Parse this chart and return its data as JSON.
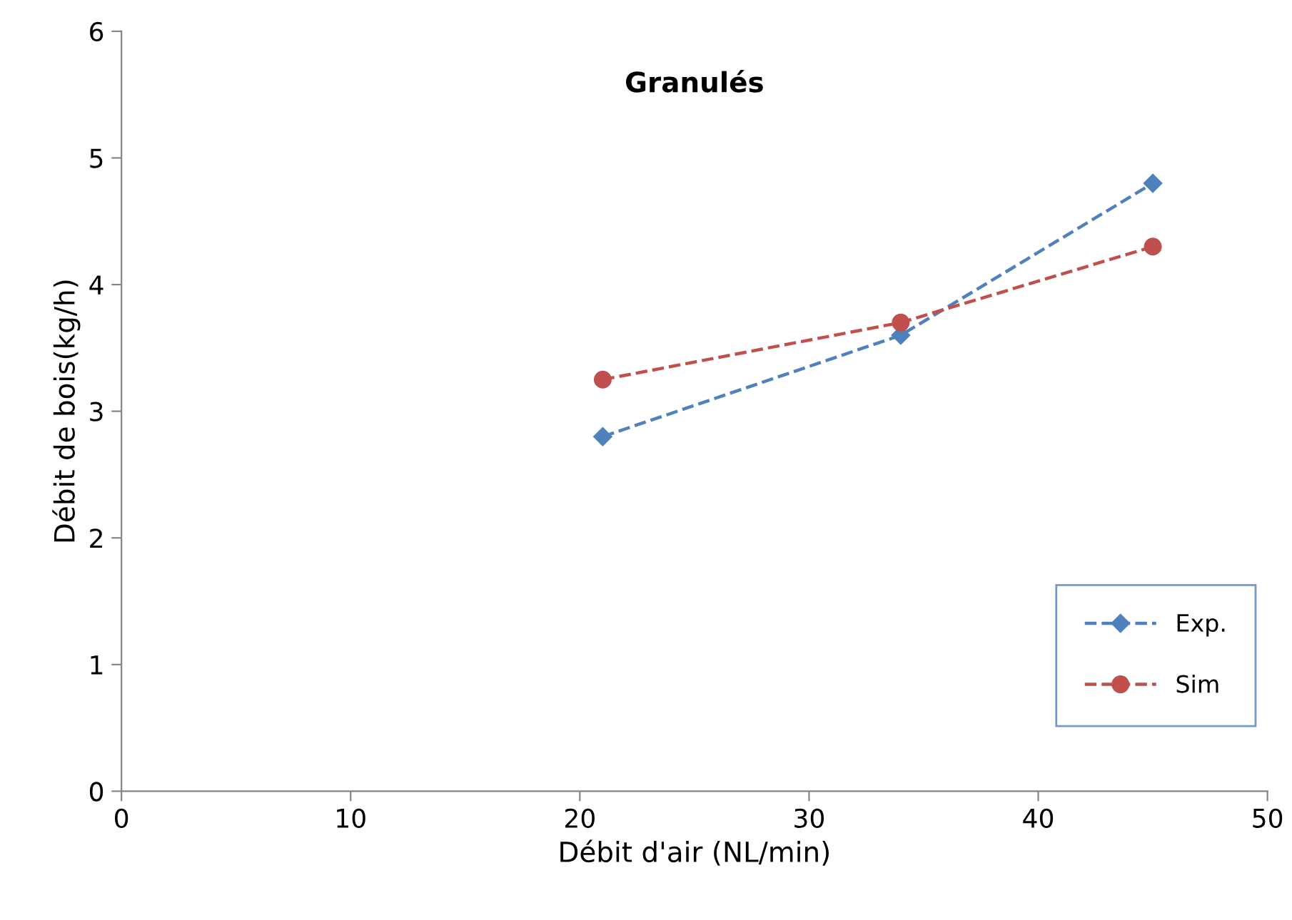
{
  "chart_data": {
    "type": "line",
    "title": "Granulés",
    "xlabel": "Débit d'air (NL/min)",
    "ylabel": "Débit de bois(kg/h)",
    "x": [
      21,
      34,
      45
    ],
    "series": [
      {
        "name": "Exp.",
        "color": "#4f81bd",
        "values": [
          2.8,
          3.6,
          4.8
        ],
        "marker": "diamond",
        "line_style": "dashed"
      },
      {
        "name": "Sim",
        "color": "#c0504d",
        "values": [
          3.25,
          3.7,
          4.3
        ],
        "marker": "circle",
        "line_style": "dashed"
      }
    ],
    "xlim": [
      0,
      50
    ],
    "xticks": [
      0,
      10,
      20,
      30,
      40,
      50
    ],
    "ylim": [
      0,
      6
    ],
    "yticks": [
      0,
      1,
      2,
      3,
      4,
      5,
      6
    ],
    "grid": false,
    "legend": "bottom right"
  }
}
